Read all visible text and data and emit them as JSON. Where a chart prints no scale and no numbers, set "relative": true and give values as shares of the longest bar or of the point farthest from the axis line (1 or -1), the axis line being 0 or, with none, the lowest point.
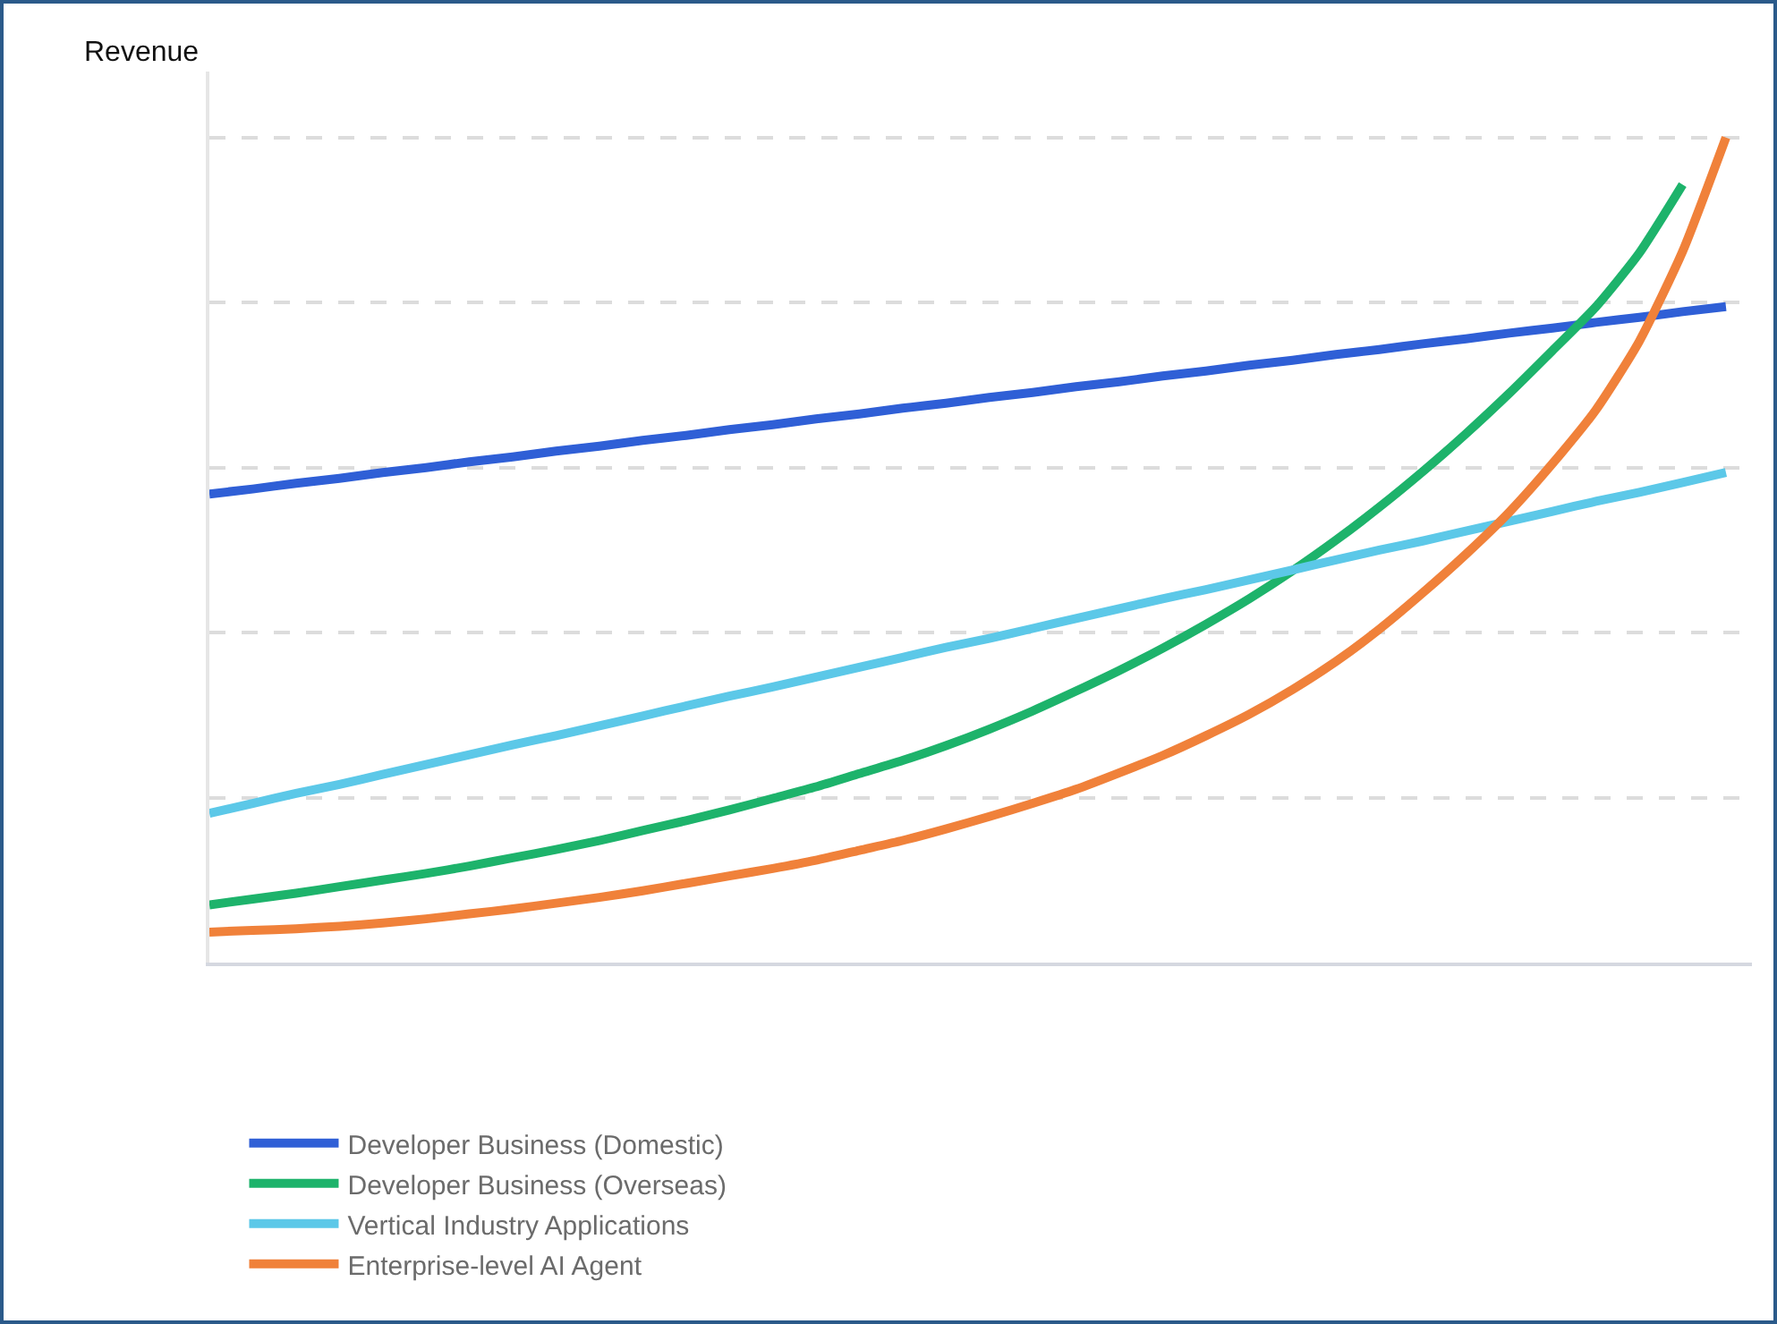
{
  "chart_data": {
    "type": "line",
    "ylabel": "Revenue",
    "relative": true,
    "grid": "y",
    "legend": "bottom",
    "line_style": "solid",
    "categories": [
      null,
      null,
      null,
      null,
      null,
      null,
      null,
      null,
      null,
      null,
      null,
      null,
      null,
      null,
      null,
      null,
      null,
      null,
      null,
      null,
      null,
      null,
      null,
      null,
      null,
      null,
      null,
      null,
      null,
      null,
      null,
      null,
      null,
      null,
      null,
      null
    ],
    "series": [
      {
        "name": "Developer Business (Domestic)",
        "color": "#2f5fd6",
        "values": [
          0.568,
          0.574,
          0.581,
          0.587,
          0.594,
          0.6,
          0.607,
          0.613,
          0.62,
          0.626,
          0.633,
          0.639,
          0.646,
          0.652,
          0.659,
          0.665,
          0.672,
          0.678,
          0.685,
          0.691,
          0.698,
          0.704,
          0.711,
          0.717,
          0.724,
          0.73,
          0.737,
          0.743,
          0.75,
          0.756,
          0.763,
          0.769,
          0.776,
          0.782,
          0.789,
          0.795
        ]
      },
      {
        "name": "Developer Business (Overseas)",
        "color": "#1db36b",
        "values": [
          0.07,
          0.077,
          0.084,
          0.092,
          0.1,
          0.108,
          0.117,
          0.127,
          0.137,
          0.148,
          0.16,
          0.172,
          0.185,
          0.199,
          0.213,
          0.229,
          0.245,
          0.263,
          0.283,
          0.305,
          0.329,
          0.354,
          0.381,
          0.41,
          0.441,
          0.475,
          0.512,
          0.552,
          0.595,
          0.641,
          0.69,
          0.742,
          0.795,
          0.86,
          0.943,
          null
        ]
      },
      {
        "name": "Vertical Industry Applications",
        "color": "#5cc8e8",
        "values": [
          0.181,
          0.193,
          0.205,
          0.216,
          0.228,
          0.24,
          0.252,
          0.264,
          0.275,
          0.287,
          0.299,
          0.311,
          0.323,
          0.334,
          0.346,
          0.358,
          0.37,
          0.382,
          0.393,
          0.405,
          0.417,
          0.429,
          0.441,
          0.452,
          0.464,
          0.476,
          0.488,
          0.5,
          0.511,
          0.523,
          0.535,
          0.547,
          0.559,
          0.57,
          0.582,
          0.594
        ]
      },
      {
        "name": "Enterprise-level AI Agent",
        "color": "#f0813a",
        "values": [
          0.037,
          0.039,
          0.041,
          0.044,
          0.048,
          0.053,
          0.059,
          0.065,
          0.072,
          0.079,
          0.087,
          0.096,
          0.105,
          0.114,
          0.124,
          0.136,
          0.148,
          0.162,
          0.177,
          0.193,
          0.21,
          0.23,
          0.251,
          0.275,
          0.301,
          0.331,
          0.365,
          0.404,
          0.448,
          0.495,
          0.546,
          0.605,
          0.67,
          0.753,
          0.862,
          1.0
        ]
      }
    ]
  }
}
